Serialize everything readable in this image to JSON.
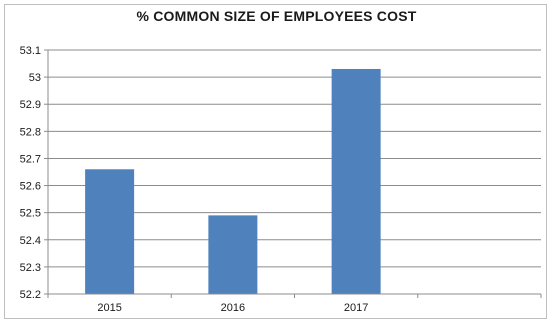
{
  "chart_data": {
    "type": "bar",
    "title": "% COMMON SIZE OF EMPLOYEES COST",
    "categories": [
      "2015",
      "2016",
      "2017",
      ""
    ],
    "series": [
      {
        "values": [
          52.66,
          52.49,
          53.03,
          null
        ],
        "color": "#4f81bd"
      }
    ],
    "ylim": [
      52.2,
      53.1
    ],
    "yticks": [
      "53.1",
      "53",
      "52.9",
      "52.8",
      "52.7",
      "52.6",
      "52.5",
      "52.4",
      "52.3",
      "52.2"
    ],
    "xlabel": "",
    "ylabel": "",
    "grid": true,
    "legend": "none"
  }
}
